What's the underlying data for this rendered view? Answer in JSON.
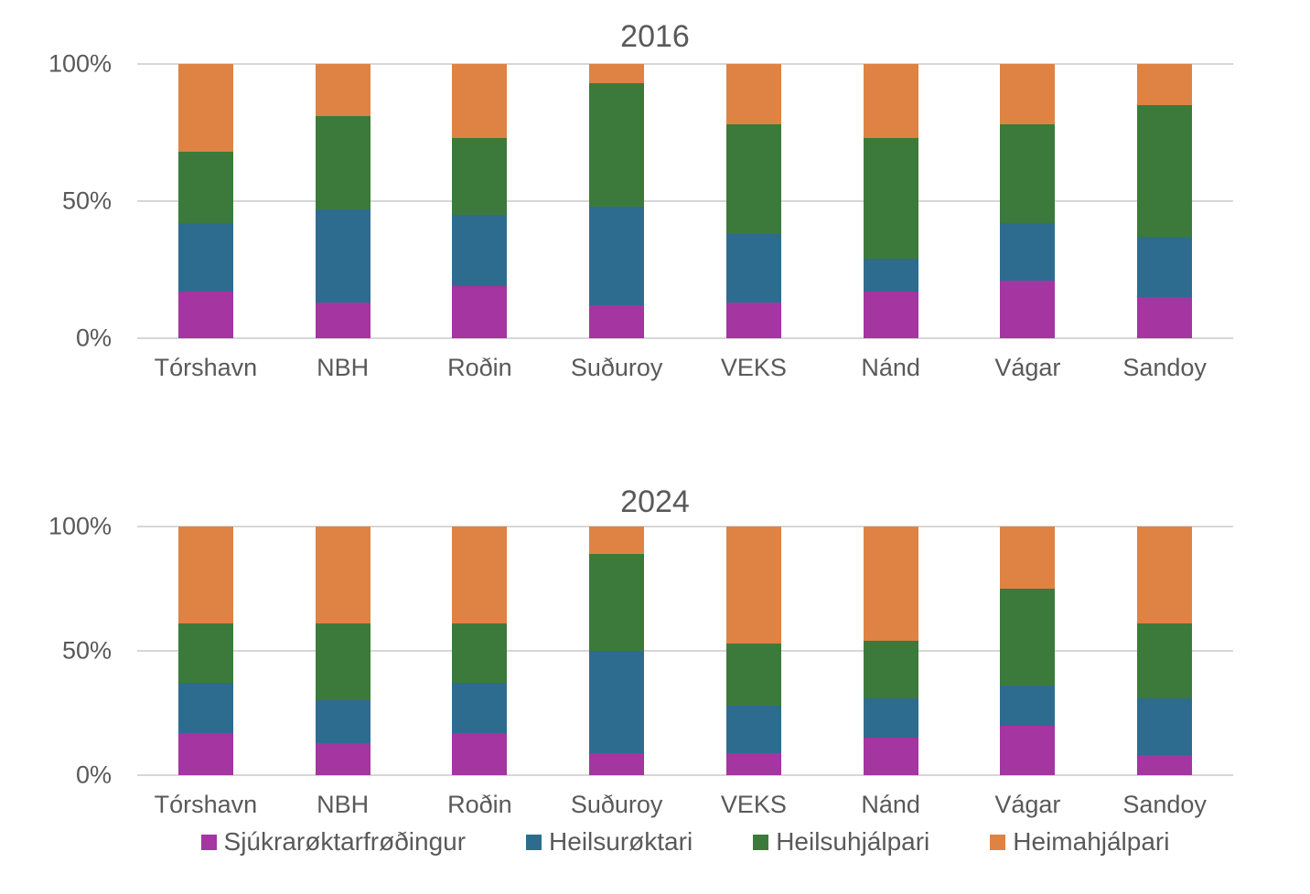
{
  "chart_data": [
    {
      "type": "bar",
      "subtype": "stacked-100-percent-column",
      "title": "2016",
      "categories": [
        "Tórshavn",
        "NBH",
        "Roðin",
        "Suðuroy",
        "VEKS",
        "Nánd",
        "Vágar",
        "Sandoy"
      ],
      "series": [
        {
          "name": "Sjúkrarøktarfrøðingur",
          "color": "#A435A1",
          "values": [
            17,
            13,
            19,
            12,
            13,
            17,
            21,
            15
          ]
        },
        {
          "name": "Heilsurøktari",
          "color": "#2E6C8F",
          "values": [
            25,
            34,
            26,
            36,
            25,
            12,
            21,
            22
          ]
        },
        {
          "name": "Heilsuhjálpari",
          "color": "#3C7A3B",
          "values": [
            26,
            34,
            28,
            45,
            40,
            44,
            36,
            48
          ]
        },
        {
          "name": "Heimahjálpari",
          "color": "#DE8344",
          "values": [
            32,
            19,
            27,
            7,
            22,
            27,
            22,
            15
          ]
        }
      ],
      "y_ticks": [
        {
          "label": "100%",
          "value": 100
        },
        {
          "label": "50%",
          "value": 50
        },
        {
          "label": "0%",
          "value": 0
        }
      ],
      "ylim": [
        0,
        100
      ],
      "grid": true,
      "xlabel": "",
      "ylabel": "",
      "legend_position": "none"
    },
    {
      "type": "bar",
      "subtype": "stacked-100-percent-column",
      "title": "2024",
      "categories": [
        "Tórshavn",
        "NBH",
        "Roðin",
        "Suðuroy",
        "VEKS",
        "Nánd",
        "Vágar",
        "Sandoy"
      ],
      "series": [
        {
          "name": "Sjúkrarøktarfrøðingur",
          "color": "#A435A1",
          "values": [
            17,
            13,
            17,
            9,
            9,
            15,
            20,
            8
          ]
        },
        {
          "name": "Heilsurøktari",
          "color": "#2E6C8F",
          "values": [
            20,
            17,
            20,
            41,
            19,
            16,
            16,
            23
          ]
        },
        {
          "name": "Heilsuhjálpari",
          "color": "#3C7A3B",
          "values": [
            24,
            31,
            24,
            39,
            25,
            23,
            39,
            30
          ]
        },
        {
          "name": "Heimahjálpari",
          "color": "#DE8344",
          "values": [
            39,
            39,
            39,
            11,
            47,
            46,
            25,
            39
          ]
        }
      ],
      "y_ticks": [
        {
          "label": "100%",
          "value": 100
        },
        {
          "label": "50%",
          "value": 50
        },
        {
          "label": "0%",
          "value": 0
        }
      ],
      "ylim": [
        0,
        100
      ],
      "grid": true,
      "xlabel": "",
      "ylabel": "",
      "legend_position": "bottom"
    }
  ],
  "legend": {
    "items": [
      {
        "label": "Sjúkrarøktarfrøðingur",
        "color": "#A435A1"
      },
      {
        "label": "Heilsurøktari",
        "color": "#2E6C8F"
      },
      {
        "label": "Heilsuhjálpari",
        "color": "#3C7A3B"
      },
      {
        "label": "Heimahjálpari",
        "color": "#DE8344"
      }
    ]
  },
  "style": {
    "text_color": "#595959",
    "gridline_color": "#D7D7D7",
    "background": "#FFFFFF"
  }
}
